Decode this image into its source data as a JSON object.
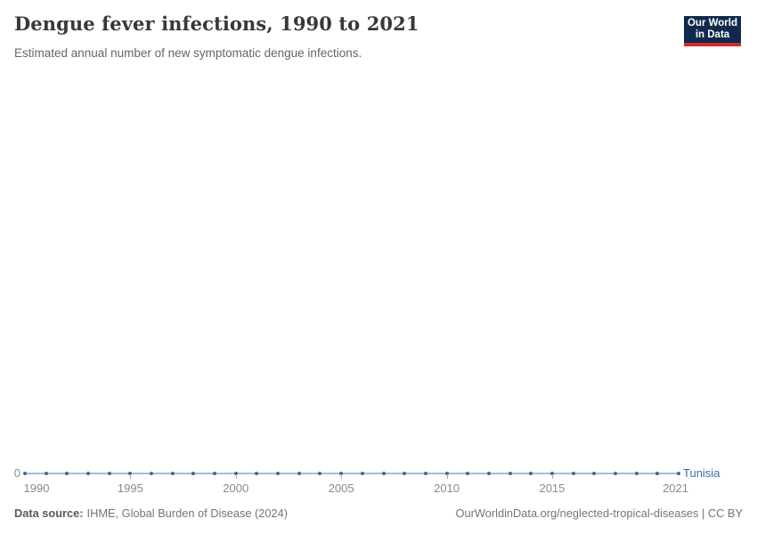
{
  "header": {
    "title": "Dengue fever infections, 1990 to 2021",
    "subtitle": "Estimated annual number of new symptomatic dengue infections."
  },
  "logo": {
    "line1": "Our World",
    "line2": "in Data",
    "bg_color": "#102a4d",
    "accent_color": "#d7282d",
    "text_color": "#ffffff"
  },
  "chart_data": {
    "type": "line",
    "title": "Dengue fever infections, 1990 to 2021",
    "entity": "Tunisia",
    "x": [
      1990,
      1991,
      1992,
      1993,
      1994,
      1995,
      1996,
      1997,
      1998,
      1999,
      2000,
      2001,
      2002,
      2003,
      2004,
      2005,
      2006,
      2007,
      2008,
      2009,
      2010,
      2011,
      2012,
      2013,
      2014,
      2015,
      2016,
      2017,
      2018,
      2019,
      2020,
      2021
    ],
    "series": [
      {
        "name": "Tunisia",
        "values": [
          0,
          0,
          0,
          0,
          0,
          0,
          0,
          0,
          0,
          0,
          0,
          0,
          0,
          0,
          0,
          0,
          0,
          0,
          0,
          0,
          0,
          0,
          0,
          0,
          0,
          0,
          0,
          0,
          0,
          0,
          0,
          0
        ]
      }
    ],
    "x_ticks": [
      1990,
      1995,
      2000,
      2005,
      2010,
      2015,
      2021
    ],
    "y_tick_label": "0",
    "grid": false,
    "legend": "entity-label-right-of-line",
    "colors": {
      "line": "#a3bcdf",
      "marker": "#4268a3",
      "entity_label": "#3d6bb0",
      "axis_text": "#8a8a8a",
      "tick": "#a9a9a9"
    }
  },
  "footer": {
    "datasource_label": "Data source:",
    "datasource_text": "IHME, Global Burden of Disease (2024)",
    "credit": "OurWorldinData.org/neglected-tropical-diseases | CC BY"
  }
}
